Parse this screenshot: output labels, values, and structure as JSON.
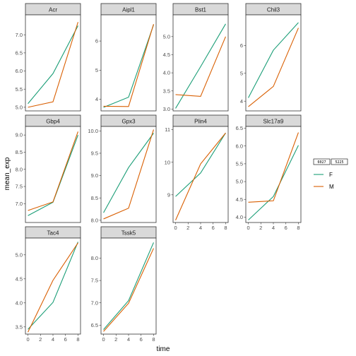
{
  "chart_data": {
    "type": "line",
    "facet_by": "gene",
    "xlabel": "time",
    "ylabel": "mean_exp",
    "x_ticks": [
      0,
      2,
      4,
      6,
      8
    ],
    "legend": {
      "position": "right",
      "title_glyphs": [
        "6027",
        "5225"
      ],
      "entries": [
        {
          "name": "F",
          "color": "#1b9e77"
        },
        {
          "name": "M",
          "color": "#d95f02"
        }
      ]
    },
    "panels": [
      {
        "gene": "Acr",
        "yticks": [
          5.0,
          5.5,
          6.0,
          6.5,
          7.0
        ],
        "ylim": [
          4.9,
          7.55
        ],
        "series": [
          {
            "name": "F",
            "x": [
              0,
              4,
              8
            ],
            "y": [
              5.1,
              5.93,
              7.25
            ]
          },
          {
            "name": "M",
            "x": [
              0,
              4,
              8
            ],
            "y": [
              5.0,
              5.15,
              7.35
            ]
          }
        ]
      },
      {
        "gene": "Aipl1",
        "yticks": [
          4,
          5,
          6
        ],
        "ylim": [
          3.6,
          6.9
        ],
        "series": [
          {
            "name": "F",
            "x": [
              0,
              4,
              8
            ],
            "y": [
              3.72,
              4.07,
              6.56
            ]
          },
          {
            "name": "M",
            "x": [
              0,
              4,
              8
            ],
            "y": [
              3.76,
              3.75,
              6.58
            ]
          }
        ]
      },
      {
        "gene": "Bst1",
        "yticks": [
          3.0,
          3.5,
          4.0,
          4.5,
          5.0
        ],
        "ylim": [
          2.95,
          5.6
        ],
        "series": [
          {
            "name": "F",
            "x": [
              0,
              4,
              8
            ],
            "y": [
              3.02,
              4.17,
              5.35
            ]
          },
          {
            "name": "M",
            "x": [
              0,
              4,
              8
            ],
            "y": [
              3.4,
              3.35,
              5.0
            ]
          }
        ]
      },
      {
        "gene": "Chil3",
        "yticks": [
          4,
          5,
          6
        ],
        "ylim": [
          3.65,
          7.1
        ],
        "series": [
          {
            "name": "F",
            "x": [
              0,
              4,
              8
            ],
            "y": [
              4.12,
              5.83,
              6.82
            ]
          },
          {
            "name": "M",
            "x": [
              0,
              4,
              8
            ],
            "y": [
              3.8,
              4.53,
              6.63
            ]
          }
        ]
      },
      {
        "gene": "Gbp4",
        "yticks": [
          7.0,
          7.5,
          8.0,
          8.5,
          9.0
        ],
        "ylim": [
          6.45,
          9.25
        ],
        "series": [
          {
            "name": "F",
            "x": [
              0,
              4,
              8
            ],
            "y": [
              6.65,
              7.04,
              9.0
            ]
          },
          {
            "name": "M",
            "x": [
              0,
              4,
              8
            ],
            "y": [
              6.8,
              7.05,
              9.1
            ]
          }
        ]
      },
      {
        "gene": "Gpx3",
        "yticks": [
          8.0,
          8.5,
          9.0,
          9.5,
          10.0
        ],
        "ylim": [
          7.95,
          10.1
        ],
        "series": [
          {
            "name": "F",
            "x": [
              0,
              4,
              8
            ],
            "y": [
              8.17,
              9.18,
              9.95
            ]
          },
          {
            "name": "M",
            "x": [
              0,
              4,
              8
            ],
            "y": [
              8.03,
              8.27,
              10.03
            ]
          }
        ]
      },
      {
        "gene": "Plin4",
        "yticks": [
          9,
          10,
          11
        ],
        "ylim": [
          8.15,
          11.1
        ],
        "series": [
          {
            "name": "F",
            "x": [
              0,
              4,
              8
            ],
            "y": [
              8.95,
              9.67,
              10.9
            ]
          },
          {
            "name": "M",
            "x": [
              0,
              4,
              8
            ],
            "y": [
              8.22,
              9.95,
              10.9
            ]
          }
        ]
      },
      {
        "gene": "Slc17a9",
        "yticks": [
          4.0,
          4.5,
          5.0,
          5.5,
          6.0,
          6.5
        ],
        "ylim": [
          3.85,
          6.55
        ],
        "series": [
          {
            "name": "F",
            "x": [
              0,
              4,
              8
            ],
            "y": [
              3.92,
              4.58,
              6.02
            ]
          },
          {
            "name": "M",
            "x": [
              0,
              4,
              8
            ],
            "y": [
              4.42,
              4.46,
              6.38
            ]
          }
        ]
      },
      {
        "gene": "Tac4",
        "yticks": [
          3.5,
          4.0,
          4.5,
          5.0
        ],
        "ylim": [
          3.35,
          5.35
        ],
        "series": [
          {
            "name": "F",
            "x": [
              0,
              4,
              8
            ],
            "y": [
              3.45,
              4.01,
              5.27
            ]
          },
          {
            "name": "M",
            "x": [
              0,
              4,
              8
            ],
            "y": [
              3.39,
              4.47,
              5.25
            ]
          }
        ]
      },
      {
        "gene": "Tssk5",
        "yticks": [
          6.5,
          7.0,
          7.5,
          8.0
        ],
        "ylim": [
          6.3,
          8.45
        ],
        "series": [
          {
            "name": "F",
            "x": [
              0,
              4,
              8
            ],
            "y": [
              6.4,
              7.05,
              8.35
            ]
          },
          {
            "name": "M",
            "x": [
              0,
              4,
              8
            ],
            "y": [
              6.36,
              6.99,
              8.22
            ]
          }
        ]
      }
    ]
  }
}
